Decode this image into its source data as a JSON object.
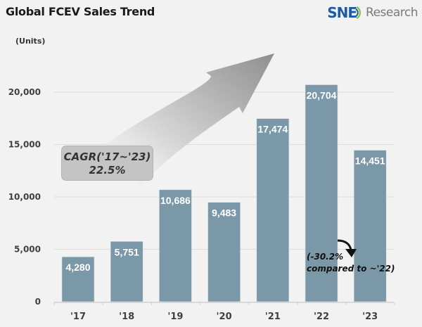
{
  "header": {
    "title": "Global FCEV Sales Trend",
    "units": "(Units)",
    "logo": {
      "brand": "SNE",
      "suffix": "Research",
      "brand_color": "#1f5aa6",
      "arc_color": "#8cc63f"
    }
  },
  "annotations": {
    "cagr_line1": "CAGR('17~'23)",
    "cagr_line2": "22.5%",
    "drop_line1": "(-30.2%",
    "drop_line2": "compared to ~'22)"
  },
  "colors": {
    "bar": "#7b98a9",
    "background": "#f2f2f2",
    "grid": "#dcdcdc"
  },
  "chart_data": {
    "type": "bar",
    "title": "Global FCEV Sales Trend",
    "xlabel": "",
    "ylabel": "(Units)",
    "categories": [
      "'17",
      "'18",
      "'19",
      "'20",
      "'21",
      "'22",
      "'23"
    ],
    "values": [
      4280,
      5751,
      10686,
      9483,
      17474,
      20704,
      14451
    ],
    "value_labels": [
      "4,280",
      "5,751",
      "10,686",
      "9,483",
      "17,474",
      "20,704",
      "14,451"
    ],
    "yticks": [
      0,
      5000,
      10000,
      15000,
      20000
    ],
    "ytick_labels": [
      "0",
      "5,000",
      "10,000",
      "15,000",
      "20,000"
    ],
    "ylim": [
      0,
      22000
    ],
    "grid": true,
    "legend": null,
    "annotations": [
      "CAGR('17~'23) 22.5%",
      "(-30.2% compared to ~'22)"
    ]
  }
}
